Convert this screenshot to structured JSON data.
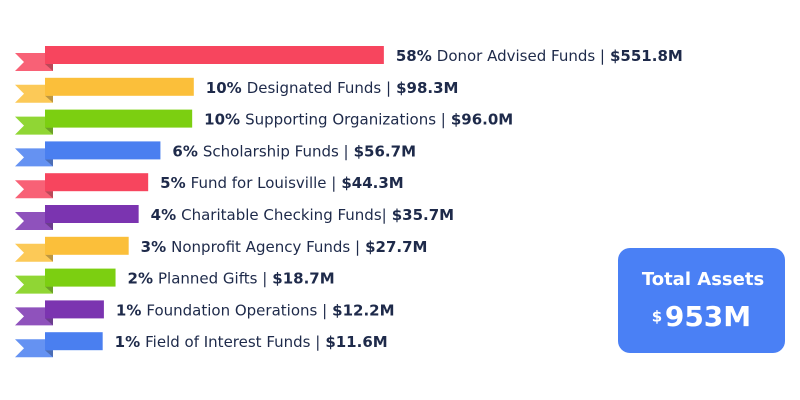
{
  "chart_data": {
    "type": "ribbon-bar",
    "categories": [
      "Donor Advised Funds |",
      "Designated Funds |",
      "Supporting Organizations |",
      "Scholarship Funds |",
      "Fund for Louisville |",
      "Charitable Checking Funds|",
      "Nonprofit Agency Funds |",
      "Planned Gifts |",
      "Foundation Operations |",
      "Field of Interest Funds |"
    ],
    "values": [
      551.8,
      98.3,
      96.0,
      56.7,
      44.3,
      35.7,
      27.7,
      18.7,
      12.2,
      11.6
    ],
    "value_labels": [
      "$551.8M",
      "$98.3M",
      "$96.0M",
      "$56.7M",
      "$44.3M",
      "$35.7M",
      "$27.7M",
      "$18.7M",
      "$12.2M",
      "$11.6M"
    ],
    "percents": [
      58,
      10,
      10,
      6,
      5,
      4,
      3,
      2,
      1,
      1
    ],
    "percent_labels": [
      "58%",
      "10%",
      "10%",
      "6%",
      "5%",
      "4%",
      "3%",
      "2%",
      "1%",
      "1%"
    ],
    "colors": [
      "#f7455e",
      "#fbbf3a",
      "#7ccf11",
      "#4a7ff0",
      "#f7455e",
      "#7b34b0",
      "#fbbf3a",
      "#7ccf11",
      "#7b34b0",
      "#4a7ff0"
    ],
    "total": {
      "label": "Total Assets",
      "currency": "$",
      "value": 953,
      "value_label": "953M",
      "color": "#4a80f5"
    }
  }
}
